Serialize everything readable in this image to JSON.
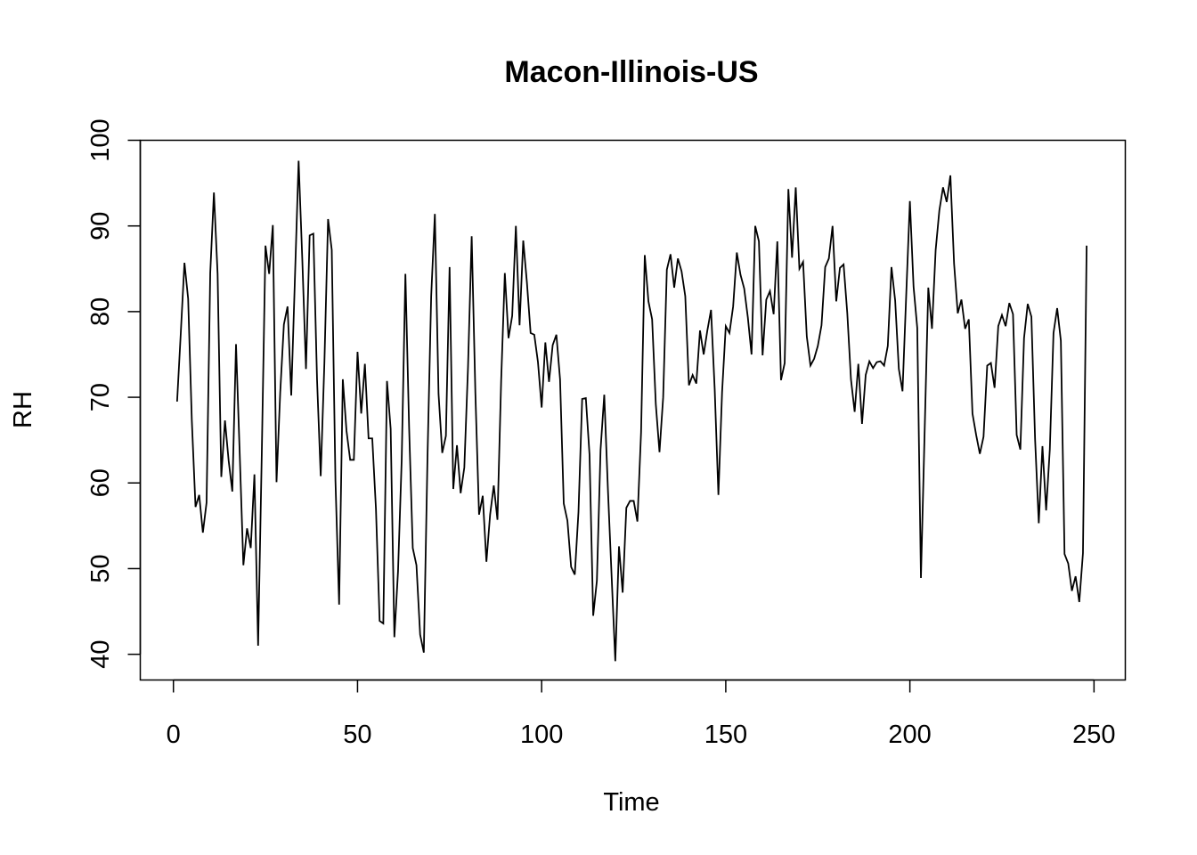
{
  "chart_data": {
    "type": "line",
    "title": "Macon-Illinois-US",
    "xlabel": "Time",
    "ylabel": "RH",
    "xlim": [
      -9,
      258.5
    ],
    "ylim": [
      37,
      100
    ],
    "xticks": [
      0,
      50,
      100,
      150,
      200,
      250
    ],
    "yticks": [
      40,
      50,
      60,
      70,
      80,
      90,
      100
    ],
    "grid": false,
    "legend": "none",
    "line_color": "#000000",
    "x_start": 1,
    "series": [
      {
        "values": [
          69.5,
          77.5,
          85.7,
          81.5,
          67.3,
          57.2,
          58.6,
          54.2,
          57.7,
          84.5,
          93.9,
          84.4,
          60.7,
          67.3,
          62.6,
          59,
          76.2,
          63.5,
          50.4,
          54.7,
          52.4,
          61,
          41,
          63.5,
          87.7,
          84.4,
          90.1,
          60.1,
          70.5,
          78.5,
          80.6,
          70.2,
          83.9,
          97.6,
          86.1,
          73.3,
          88.9,
          89.1,
          72.1,
          60.8,
          74,
          90.8,
          87.2,
          60.3,
          45.8,
          72.1,
          66.1,
          62.7,
          62.7,
          75.3,
          68.1,
          73.9,
          65.2,
          65.2,
          57,
          43.9,
          43.6,
          71.9,
          66.3,
          42,
          49.7,
          62.8,
          84.4,
          66.6,
          52.4,
          50.4,
          42.3,
          40.2,
          63,
          81.8,
          91.4,
          70.4,
          63.5,
          65.5,
          85.2,
          59.3,
          64.4,
          58.8,
          61.8,
          73.5,
          88.8,
          70.5,
          56.3,
          58.5,
          50.8,
          56.3,
          59.7,
          55.7,
          71.9,
          84.5,
          76.9,
          79.5,
          90,
          78.4,
          88.3,
          83.4,
          77.5,
          77.3,
          74.1,
          68.8,
          76.4,
          71.8,
          76.1,
          77.3,
          72.1,
          57.6,
          55.6,
          50.2,
          49.3,
          56.6,
          69.8,
          69.9,
          63.3,
          44.5,
          48.6,
          63.9,
          70.3,
          59.2,
          49.1,
          39.2,
          52.6,
          47.2,
          57.1,
          57.9,
          57.9,
          55.5,
          65.9,
          86.6,
          81.2,
          79.1,
          69.2,
          63.6,
          70,
          84.9,
          86.7,
          82.8,
          86.2,
          84.7,
          81.8,
          71.4,
          72.6,
          71.6,
          77.8,
          75,
          77.8,
          80.2,
          70.9,
          58.6,
          70.6,
          78.3,
          77.5,
          80.6,
          86.9,
          84.3,
          82.7,
          79.3,
          75,
          90,
          88.2,
          74.9,
          81.4,
          82.4,
          79.7,
          88.2,
          72,
          74,
          94.3,
          86.3,
          94.5,
          85,
          85.8,
          77.1,
          73.7,
          74.5,
          76,
          78.4,
          85.2,
          86.2,
          90,
          81.2,
          85.1,
          85.5,
          79.8,
          72.1,
          68.3,
          73.9,
          66.9,
          72.6,
          74.2,
          73.4,
          74.1,
          74.2,
          73.7,
          76,
          85.2,
          81.3,
          73.3,
          70.7,
          81.9,
          92.9,
          82.9,
          78.1,
          48.9,
          65.9,
          82.8,
          78,
          87.2,
          91.8,
          94.5,
          92.8,
          95.9,
          85.6,
          79.8,
          81.4,
          78,
          79.1,
          68.1,
          65.6,
          63.4,
          65.4,
          73.7,
          74,
          71.1,
          78.3,
          79.6,
          78.3,
          81,
          79.7,
          65.6,
          63.9,
          76.9,
          80.9,
          79.4,
          65.1,
          55.3,
          64.3,
          56.8,
          63.9,
          77.5,
          80.4,
          76.6,
          51.7,
          50.6,
          47.4,
          49.1,
          46.1,
          51.8,
          87.7
        ]
      }
    ]
  }
}
